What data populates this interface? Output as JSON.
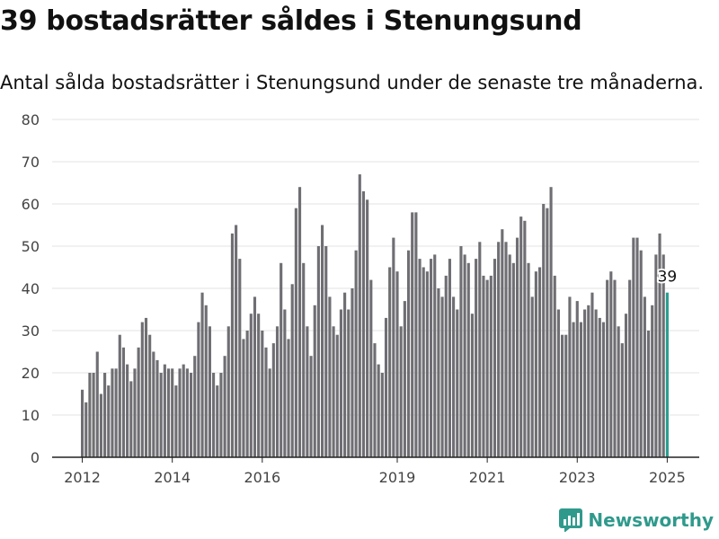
{
  "title": "39 bostadsrätter såldes i Stenungsund",
  "subtitle": "Antal sålda bostadsrätter i Stenungsund under de senaste tre månaderna.",
  "brand": {
    "name": "Newsworthy",
    "icon": "newsworthy-logo-icon",
    "color": "#2f9a8c"
  },
  "colors": {
    "bar": "#6f6e73",
    "highlight": "#2a9d8f",
    "grid": "#e3e3e3"
  },
  "chart_data": {
    "type": "bar",
    "title": "",
    "xlabel": "",
    "ylabel": "",
    "ylim": [
      0,
      80
    ],
    "yticks": [
      0,
      10,
      20,
      30,
      40,
      50,
      60,
      70,
      80
    ],
    "xticks": [
      "2012",
      "2014",
      "2016",
      "2019",
      "2021",
      "2023",
      "2025"
    ],
    "highlight_label": "39",
    "series": [
      {
        "name": "",
        "values": [
          16,
          13,
          20,
          20,
          25,
          15,
          20,
          17,
          21,
          21,
          29,
          26,
          22,
          18,
          21,
          26,
          32,
          33,
          29,
          25,
          23,
          20,
          22,
          21,
          21,
          17,
          21,
          22,
          21,
          20,
          24,
          32,
          39,
          36,
          31,
          20,
          17,
          20,
          24,
          31,
          53,
          55,
          47,
          28,
          30,
          34,
          38,
          34,
          30,
          26,
          21,
          27,
          31,
          46,
          35,
          28,
          41,
          59,
          64,
          46,
          31,
          24,
          36,
          50,
          55,
          50,
          38,
          31,
          29,
          35,
          39,
          35,
          40,
          49,
          67,
          63,
          61,
          42,
          27,
          22,
          20,
          33,
          45,
          52,
          44,
          31,
          37,
          49,
          58,
          58,
          47,
          45,
          44,
          47,
          48,
          40,
          38,
          43,
          47,
          38,
          35,
          50,
          48,
          46,
          34,
          47,
          51,
          43,
          42,
          43,
          47,
          51,
          54,
          51,
          48,
          46,
          52,
          57,
          56,
          46,
          38,
          44,
          45,
          60,
          59,
          64,
          43,
          35,
          29,
          29,
          38,
          32,
          37,
          32,
          35,
          36,
          39,
          35,
          33,
          32,
          42,
          44,
          42,
          31,
          27,
          34,
          42,
          52,
          52,
          49,
          38,
          30,
          36,
          48,
          53,
          48,
          39
        ]
      }
    ]
  }
}
